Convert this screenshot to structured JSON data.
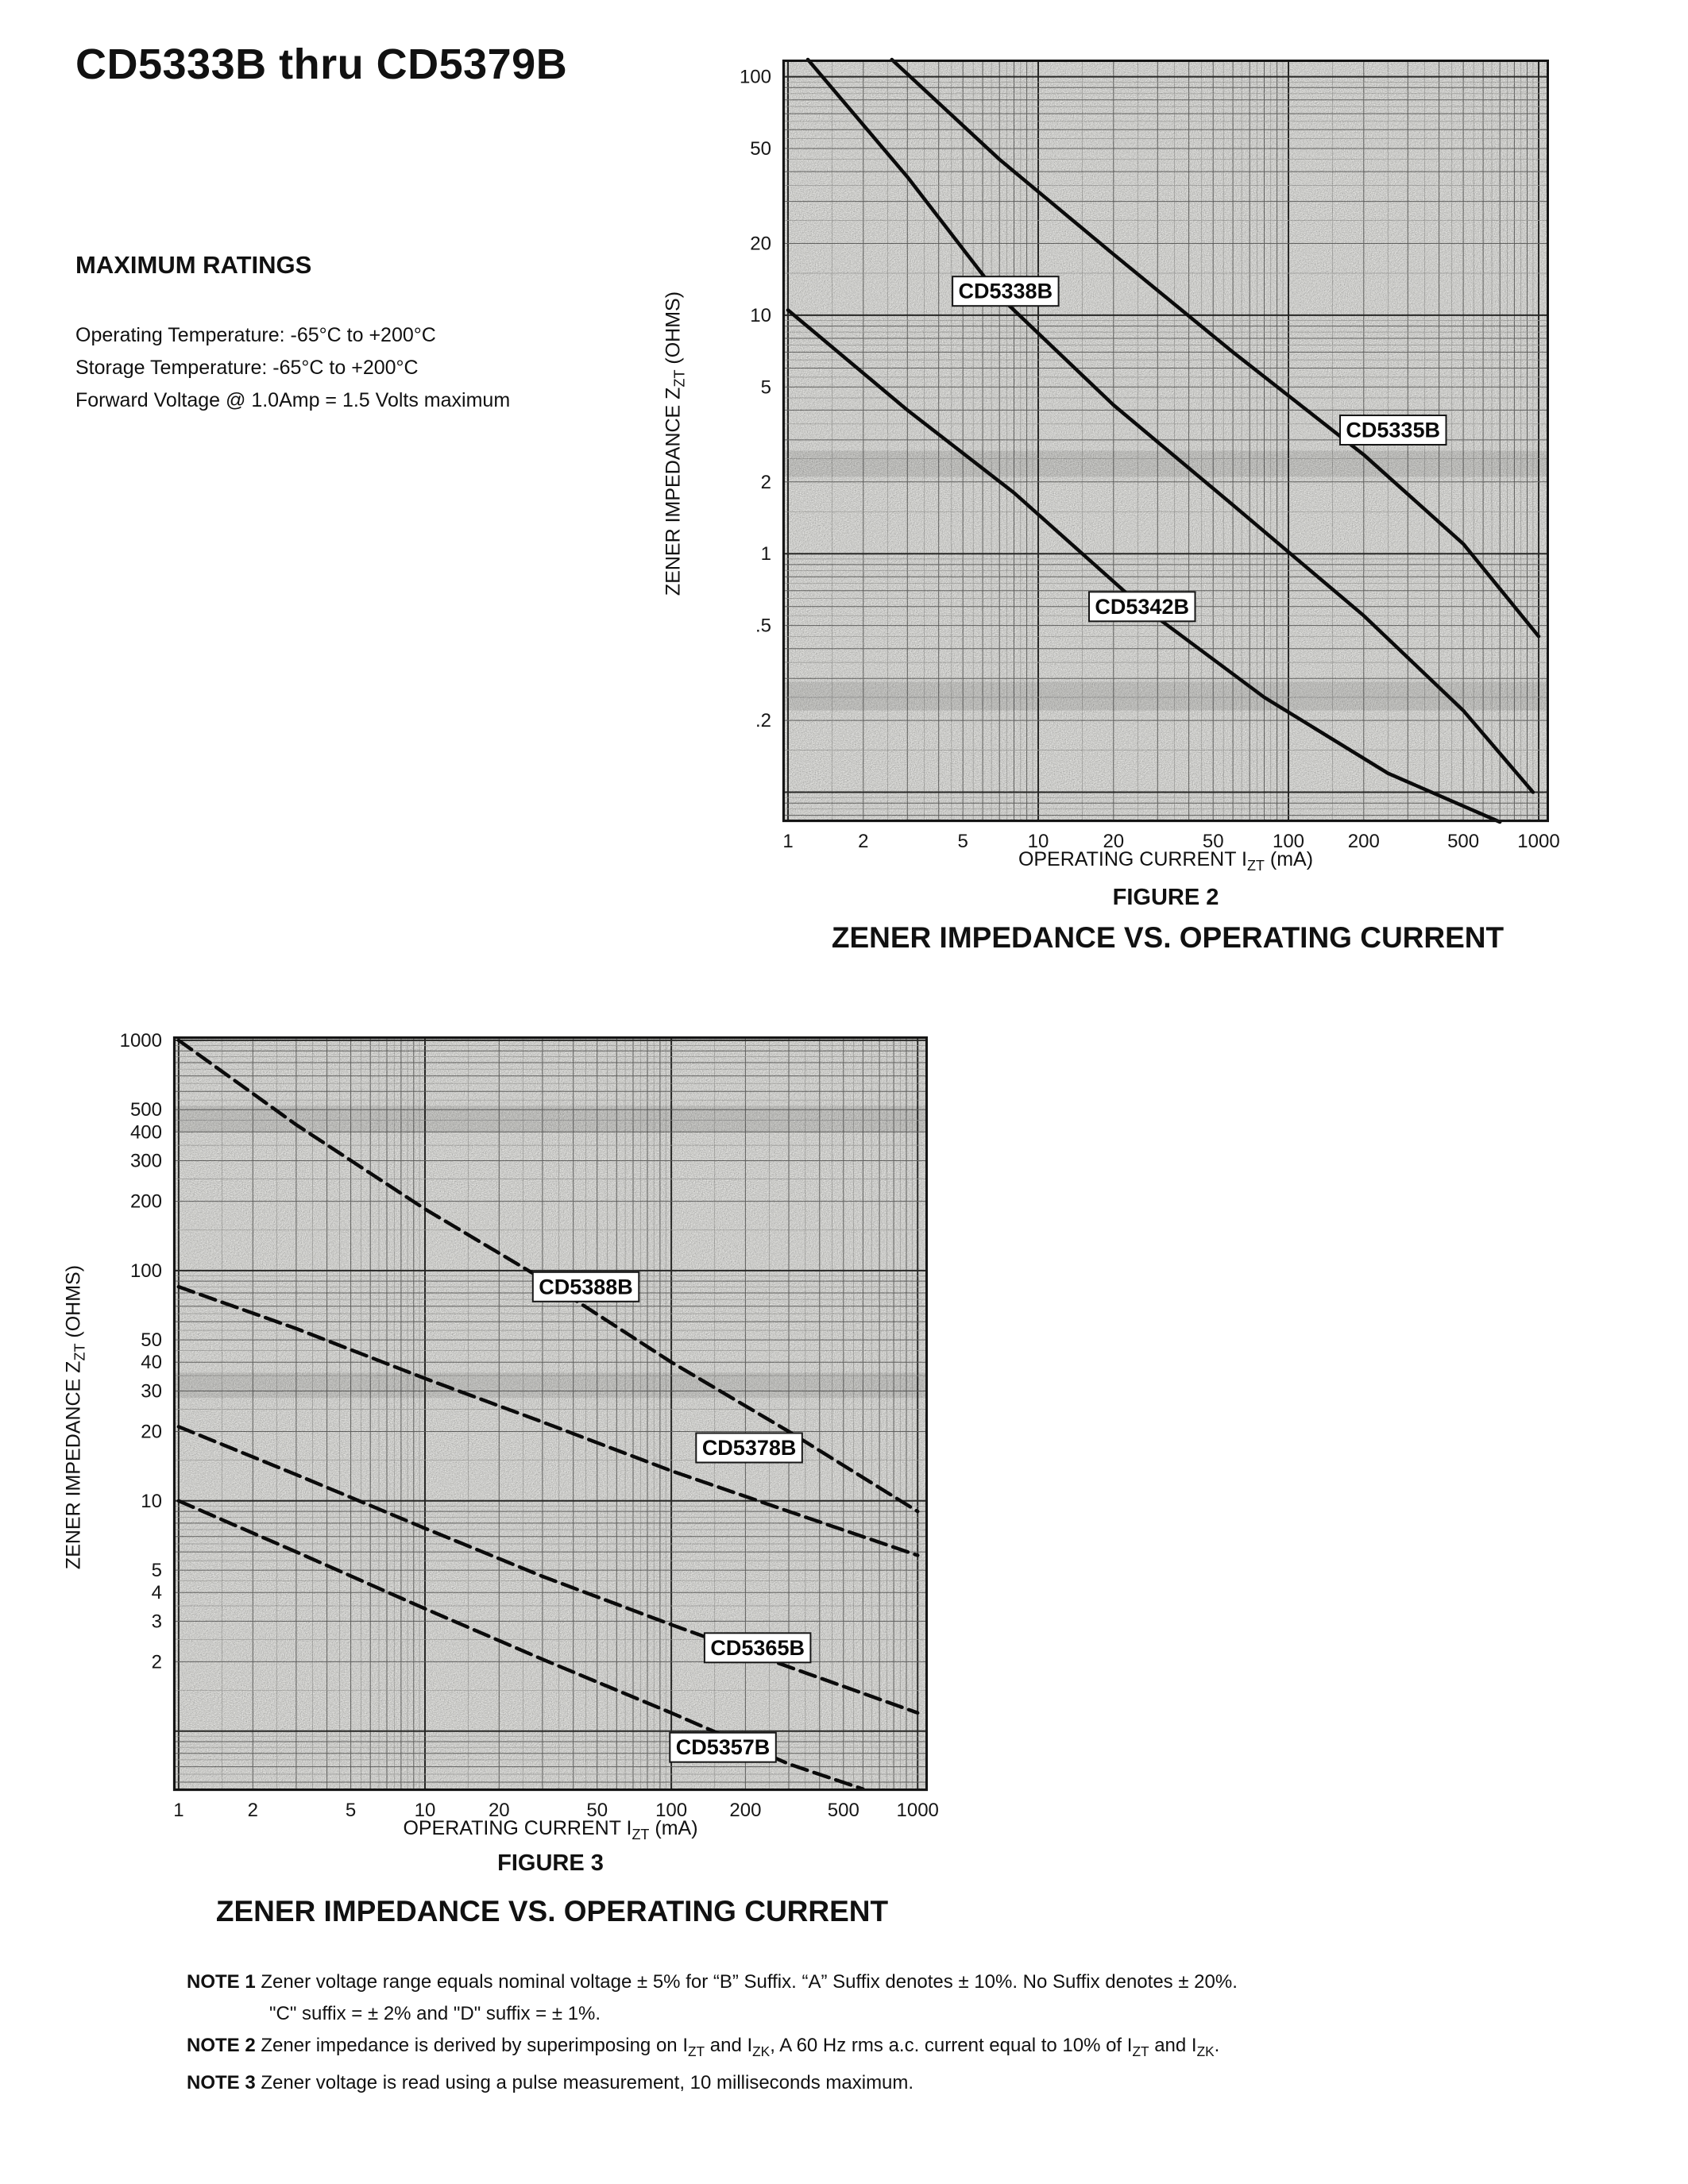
{
  "header": {
    "title": "CD5333B thru CD5379B"
  },
  "ratings": {
    "heading": "MAXIMUM RATINGS",
    "lines": [
      "Operating Temperature: -65°C to +200°C",
      "Storage Temperature: -65°C to +200°C",
      "Forward Voltage @ 1.0Amp = 1.5 Volts maximum"
    ]
  },
  "figure2": {
    "caption": "FIGURE 2",
    "heading": "ZENER IMPEDANCE VS. OPERATING CURRENT",
    "xlabel_html": "OPERATING CURRENT I<sub>ZT</sub> (mA)",
    "ylabel_html": "ZENER IMPEDANCE Z<sub>ZT</sub> (OHMS)"
  },
  "figure3": {
    "caption": "FIGURE 3",
    "heading": "ZENER IMPEDANCE VS. OPERATING CURRENT",
    "xlabel_html": "OPERATING CURRENT I<sub>ZT</sub> (mA)",
    "ylabel_html": "ZENER IMPEDANCE Z<sub>ZT</sub> (OHMS)"
  },
  "notes": {
    "items": [
      {
        "label": "NOTE 1",
        "text_html": "Zener voltage range equals nominal voltage ± 5% for “B” Suffix. “A” Suffix denotes ± 10%. No Suffix denotes ± 20%."
      },
      {
        "label": "",
        "text_html": "\"C\" suffix = ± 2% and \"D\" suffix = ± 1%."
      },
      {
        "label": "NOTE 2",
        "text_html": "Zener impedance is derived by superimposing on I<sub>ZT</sub> and I<sub>ZK</sub>, A 60 Hz rms a.c. current equal to 10% of I<sub>ZT</sub> and I<sub>ZK</sub>."
      },
      {
        "label": "NOTE 3",
        "text_html": "Zener voltage is read using a pulse measurement, 10 milliseconds maximum."
      }
    ]
  },
  "chart_data": [
    {
      "id": "fig2",
      "type": "line",
      "title": "ZENER IMPEDANCE VS. OPERATING CURRENT",
      "xlabel": "OPERATING CURRENT IZT (mA)",
      "ylabel": "ZENER IMPEDANCE ZZT (OHMS)",
      "xscale": "log",
      "yscale": "log",
      "grid": true,
      "dashed": false,
      "xlim": [
        0.95,
        1100
      ],
      "ylim": [
        0.075,
        118
      ],
      "xtick_values": [
        1,
        2,
        5,
        10,
        20,
        50,
        100,
        200,
        500,
        1000
      ],
      "xtick_labels": [
        "1",
        "2",
        "5",
        "10",
        "20",
        "50",
        "100",
        "200",
        "500",
        "1000"
      ],
      "ytick_values": [
        100,
        50,
        20,
        10,
        5,
        2,
        1,
        0.5,
        0.2
      ],
      "ytick_labels": [
        "100",
        "50",
        "20",
        "10",
        "5",
        "2",
        "1",
        ".5",
        ".2"
      ],
      "series": [
        {
          "name": "CD5338B",
          "label_at": [
            7.4,
            12.6
          ],
          "points": [
            [
              1.2,
              118
            ],
            [
              3,
              38
            ],
            [
              7,
              12
            ],
            [
              20,
              4.2
            ],
            [
              60,
              1.6
            ],
            [
              200,
              0.55
            ],
            [
              500,
              0.22
            ],
            [
              950,
              0.1
            ]
          ]
        },
        {
          "name": "CD5335B",
          "label_at": [
            262,
            3.3
          ],
          "points": [
            [
              2.6,
              118
            ],
            [
              7,
              45
            ],
            [
              20,
              18
            ],
            [
              60,
              7
            ],
            [
              200,
              2.6
            ],
            [
              500,
              1.1
            ],
            [
              1000,
              0.45
            ]
          ]
        },
        {
          "name": "CD5342B",
          "label_at": [
            26,
            0.6
          ],
          "points": [
            [
              1,
              10.5
            ],
            [
              3,
              4
            ],
            [
              8,
              1.8
            ],
            [
              25,
              0.62
            ],
            [
              80,
              0.25
            ],
            [
              250,
              0.12
            ],
            [
              700,
              0.075
            ]
          ]
        }
      ]
    },
    {
      "id": "fig3",
      "type": "line",
      "title": "ZENER IMPEDANCE VS. OPERATING CURRENT",
      "xlabel": "OPERATING CURRENT IZT (mA)",
      "ylabel": "ZENER IMPEDANCE ZZT (OHMS)",
      "xscale": "log",
      "yscale": "log",
      "grid": true,
      "dashed": true,
      "xlim": [
        0.95,
        1100
      ],
      "ylim": [
        0.55,
        1040
      ],
      "xtick_values": [
        1,
        2,
        5,
        10,
        20,
        50,
        100,
        200,
        500,
        1000
      ],
      "xtick_labels": [
        "1",
        "2",
        "5",
        "10",
        "20",
        "50",
        "100",
        "200",
        "500",
        "1000"
      ],
      "ytick_values": [
        1000,
        500,
        400,
        300,
        200,
        100,
        50,
        40,
        30,
        20,
        10,
        5,
        4,
        3,
        2
      ],
      "ytick_labels": [
        "1000",
        "500",
        "400",
        "300",
        "200",
        "100",
        "50",
        "40",
        "30",
        "20",
        "10",
        "5",
        "4",
        "3",
        "2"
      ],
      "series": [
        {
          "name": "CD5388B",
          "label_at": [
            45,
            85
          ],
          "points": [
            [
              1,
              1000
            ],
            [
              3,
              430
            ],
            [
              10,
              185
            ],
            [
              30,
              92
            ],
            [
              100,
              40
            ],
            [
              300,
              20
            ],
            [
              1000,
              9
            ]
          ]
        },
        {
          "name": "CD5378B",
          "label_at": [
            207,
            17
          ],
          "points": [
            [
              1,
              85
            ],
            [
              3,
              56
            ],
            [
              10,
              34
            ],
            [
              30,
              22
            ],
            [
              100,
              13.5
            ],
            [
              300,
              9
            ],
            [
              1000,
              5.8
            ]
          ]
        },
        {
          "name": "CD5365B",
          "label_at": [
            224,
            2.3
          ],
          "points": [
            [
              1,
              21
            ],
            [
              3,
              13
            ],
            [
              10,
              7.6
            ],
            [
              30,
              4.7
            ],
            [
              100,
              2.9
            ],
            [
              300,
              1.9
            ],
            [
              1000,
              1.2
            ]
          ]
        },
        {
          "name": "CD5357B",
          "label_at": [
            162,
            0.85
          ],
          "points": [
            [
              1,
              10
            ],
            [
              3,
              6
            ],
            [
              10,
              3.4
            ],
            [
              30,
              2.05
            ],
            [
              100,
              1.2
            ],
            [
              300,
              0.72
            ],
            [
              600,
              0.56
            ]
          ]
        }
      ]
    }
  ]
}
